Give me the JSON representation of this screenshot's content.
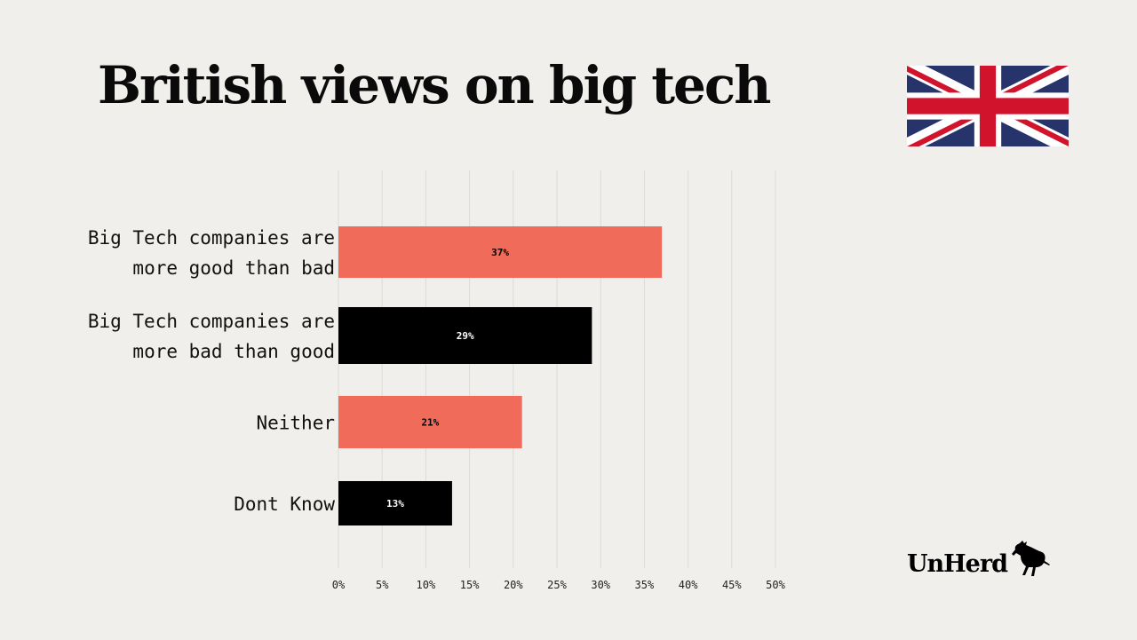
{
  "title": "British views on big tech",
  "logo_text": "UnHerd",
  "colors": {
    "accent": "#f06b59",
    "dark": "#000000",
    "background": "#f0efeb",
    "grid": "#dddbd5"
  },
  "chart_data": {
    "type": "bar",
    "orientation": "horizontal",
    "title": "British views on big tech",
    "categories": [
      [
        "Big Tech companies are",
        "more good than bad"
      ],
      [
        "Big Tech companies are",
        "more bad than good"
      ],
      [
        "Neither"
      ],
      [
        "Dont Know"
      ]
    ],
    "values": [
      37,
      29,
      21,
      13
    ],
    "data_labels": [
      "37%",
      "29%",
      "21%",
      "13%"
    ],
    "bar_colors": [
      "#f06b59",
      "#000000",
      "#f06b59",
      "#000000"
    ],
    "label_colors": [
      "#000000",
      "#ffffff",
      "#000000",
      "#ffffff"
    ],
    "xlim": [
      0,
      50
    ],
    "xticks": [
      0,
      5,
      10,
      15,
      20,
      25,
      30,
      35,
      40,
      45,
      50
    ],
    "xtick_labels": [
      "0%",
      "5%",
      "10%",
      "15%",
      "20%",
      "25%",
      "30%",
      "35%",
      "40%",
      "45%",
      "50%"
    ],
    "grid": true,
    "xlabel": "",
    "ylabel": ""
  }
}
